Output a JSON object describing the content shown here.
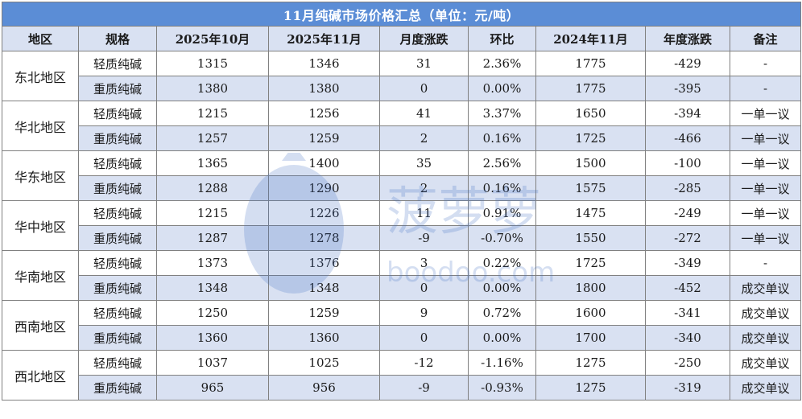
{
  "title": "11月纯碱市场价格汇总（单位：元/吨）",
  "headers": [
    "地区",
    "规格",
    "2025年10月",
    "2025年11月",
    "月度涨跌",
    "环比",
    "2024年11月",
    "年度涨跌",
    "备注"
  ],
  "regions": [
    {
      "name": "东北地区",
      "rows": [
        {
          "spec": "轻质纯碱",
          "oct2025": "1315",
          "nov2025": "1346",
          "mchange": "31",
          "mom": "2.36%",
          "nov2024": "1775",
          "ychange": "-429",
          "note": "-"
        },
        {
          "spec": "重质纯碱",
          "oct2025": "1380",
          "nov2025": "1380",
          "mchange": "0",
          "mom": "0.00%",
          "nov2024": "1775",
          "ychange": "-395",
          "note": "-"
        }
      ]
    },
    {
      "name": "华北地区",
      "rows": [
        {
          "spec": "轻质纯碱",
          "oct2025": "1215",
          "nov2025": "1256",
          "mchange": "41",
          "mom": "3.37%",
          "nov2024": "1650",
          "ychange": "-394",
          "note": "一单一议"
        },
        {
          "spec": "重质纯碱",
          "oct2025": "1257",
          "nov2025": "1259",
          "mchange": "2",
          "mom": "0.16%",
          "nov2024": "1725",
          "ychange": "-466",
          "note": "一单一议"
        }
      ]
    },
    {
      "name": "华东地区",
      "rows": [
        {
          "spec": "轻质纯碱",
          "oct2025": "1365",
          "nov2025": "1400",
          "mchange": "35",
          "mom": "2.56%",
          "nov2024": "1500",
          "ychange": "-100",
          "note": "一单一议"
        },
        {
          "spec": "重质纯碱",
          "oct2025": "1288",
          "nov2025": "1290",
          "mchange": "2",
          "mom": "0.16%",
          "nov2024": "1575",
          "ychange": "-285",
          "note": "一单一议"
        }
      ]
    },
    {
      "name": "华中地区",
      "rows": [
        {
          "spec": "轻质纯碱",
          "oct2025": "1215",
          "nov2025": "1226",
          "mchange": "11",
          "mom": "0.91%",
          "nov2024": "1475",
          "ychange": "-249",
          "note": "一单一议"
        },
        {
          "spec": "重质纯碱",
          "oct2025": "1287",
          "nov2025": "1278",
          "mchange": "-9",
          "mom": "-0.70%",
          "nov2024": "1550",
          "ychange": "-272",
          "note": "一单一议"
        }
      ]
    },
    {
      "name": "华南地区",
      "rows": [
        {
          "spec": "轻质纯碱",
          "oct2025": "1373",
          "nov2025": "1376",
          "mchange": "3",
          "mom": "0.22%",
          "nov2024": "1725",
          "ychange": "-349",
          "note": "-"
        },
        {
          "spec": "重质纯碱",
          "oct2025": "1348",
          "nov2025": "1348",
          "mchange": "0",
          "mom": "0.00%",
          "nov2024": "1800",
          "ychange": "-452",
          "note": "成交单议"
        }
      ]
    },
    {
      "name": "西南地区",
      "rows": [
        {
          "spec": "轻质纯碱",
          "oct2025": "1250",
          "nov2025": "1259",
          "mchange": "9",
          "mom": "0.72%",
          "nov2024": "1600",
          "ychange": "-341",
          "note": "成交单议"
        },
        {
          "spec": "重质纯碱",
          "oct2025": "1360",
          "nov2025": "1360",
          "mchange": "0",
          "mom": "0.00%",
          "nov2024": "1700",
          "ychange": "-340",
          "note": "成交单议"
        }
      ]
    },
    {
      "name": "西北地区",
      "rows": [
        {
          "spec": "轻质纯碱",
          "oct2025": "1037",
          "nov2025": "1025",
          "mchange": "-12",
          "mom": "-1.16%",
          "nov2024": "1275",
          "ychange": "-250",
          "note": "成交单议"
        },
        {
          "spec": "重质纯碱",
          "oct2025": "965",
          "nov2025": "956",
          "mchange": "-9",
          "mom": "-0.93%",
          "nov2024": "1275",
          "ychange": "-319",
          "note": "成交单议"
        }
      ]
    }
  ],
  "watermark": {
    "brand": "菠萝萝",
    "domain": "boodoo.com",
    "icon": "pineapple-logo-icon",
    "color": "#3f6fc4"
  },
  "colors": {
    "title_bg": "#5b8dd6",
    "header_bg": "#d9e1f2",
    "alt_row_bg": "#d9e1f2",
    "border": "#808080"
  }
}
